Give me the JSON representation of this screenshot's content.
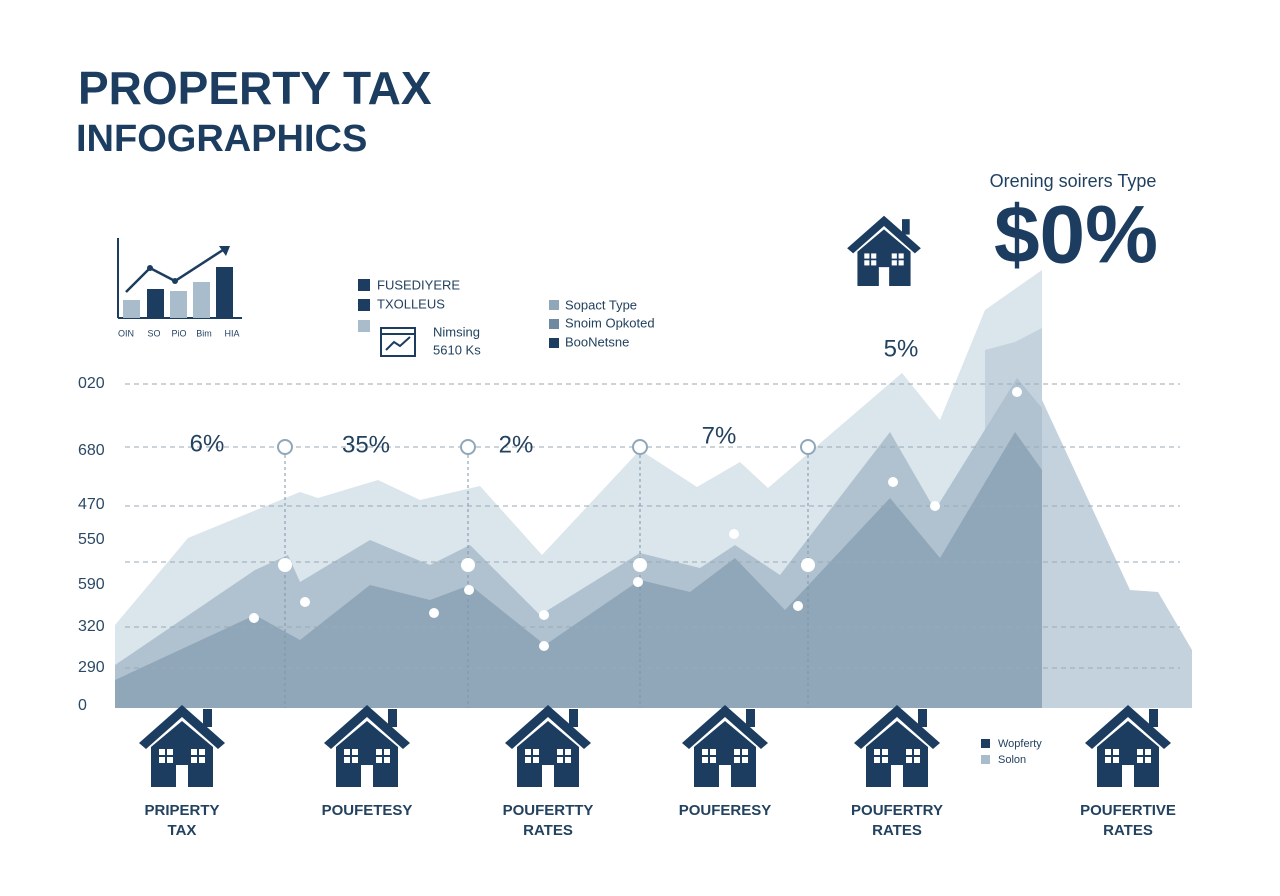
{
  "header": {
    "title": "PROPERTY TAX",
    "subtitle": "INFOGRAPHICS"
  },
  "mini_chart": {
    "labels": [
      "OIN",
      "SO",
      "PiO",
      "Bim",
      "HIA"
    ]
  },
  "legend_left": [
    "FUSEDIYERE",
    "TXOLLEUS"
  ],
  "icon_note": [
    "Nimsing",
    "5610 Ks"
  ],
  "legend_mid": [
    "Sopact Type",
    "Snoim Opkoted",
    "BooNetsne"
  ],
  "highlight": {
    "caption": "Orening soirers Type",
    "value": "$0%"
  },
  "axis_labels": [
    "020",
    "680",
    "470",
    "550",
    "590",
    "320",
    "290",
    "0"
  ],
  "callouts": [
    "6%",
    "35%",
    "2%",
    "7%",
    "5%"
  ],
  "houses": [
    {
      "lines": [
        "PRIPERTY",
        "TAX"
      ]
    },
    {
      "lines": [
        "POUFETESY"
      ]
    },
    {
      "lines": [
        "POUFERTTY",
        "RATES"
      ]
    },
    {
      "lines": [
        "POUFERESY"
      ]
    },
    {
      "lines": [
        "POUFERTRY",
        "RATES"
      ]
    },
    {
      "lines": [
        "POUFERTIVE",
        "RATES"
      ]
    }
  ],
  "legend_bottom": [
    "Wopferty",
    "Solon"
  ]
}
